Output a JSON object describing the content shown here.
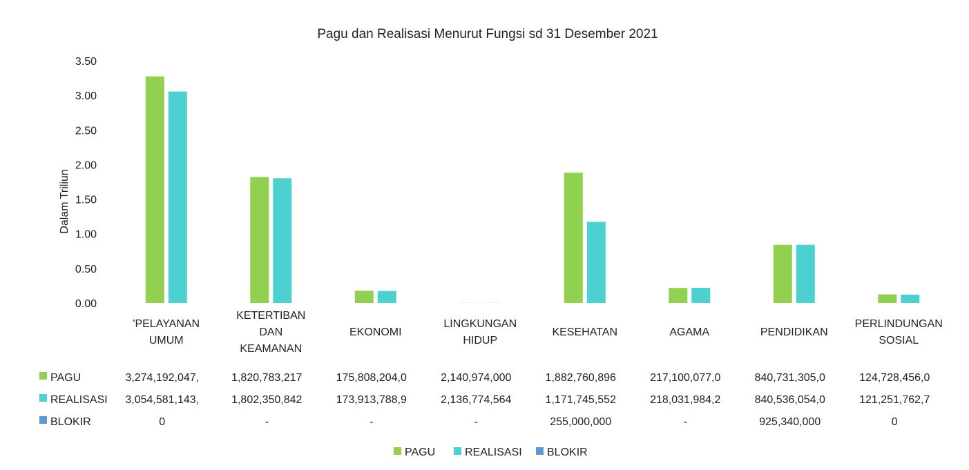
{
  "chart_data": {
    "type": "bar",
    "title": "Pagu dan Realisasi Menurut Fungsi sd 31 Desember 2021",
    "ylabel": "Dalam Triliun",
    "xlabel": "",
    "ylim": [
      0,
      3.5
    ],
    "yticks": [
      "0.00",
      "0.50",
      "1.00",
      "1.50",
      "2.00",
      "2.50",
      "3.00",
      "3.50"
    ],
    "grid": false,
    "legend_position": "bottom",
    "categories": [
      [
        "'PELAYANAN",
        "UMUM"
      ],
      [
        "KETERTIBAN",
        "DAN",
        "KEAMANAN"
      ],
      [
        "EKONOMI"
      ],
      [
        "LINGKUNGAN",
        "HIDUP"
      ],
      [
        "KESEHATAN"
      ],
      [
        "AGAMA"
      ],
      [
        "PENDIDIKAN"
      ],
      [
        "PERLINDUNGAN",
        "SOSIAL"
      ]
    ],
    "series": [
      {
        "name": "PAGU",
        "color": "#92d050",
        "values": [
          3.274,
          1.821,
          0.176,
          0.002,
          1.883,
          0.217,
          0.841,
          0.125
        ],
        "table": [
          "3,274,192,047,",
          "1,820,783,217",
          "175,808,204,0",
          "2,140,974,000",
          "1,882,760,896",
          "217,100,077,0",
          "840,731,305,0",
          "124,728,456,0"
        ]
      },
      {
        "name": "REALISASI",
        "color": "#4dd0d0",
        "values": [
          3.055,
          1.802,
          0.174,
          0.002,
          1.172,
          0.218,
          0.841,
          0.121
        ],
        "table": [
          "3,054,581,143,",
          "1,802,350,842",
          "173,913,788,9",
          "2,136,774,564",
          "1,171,745,552",
          "218,031,984,2",
          "840,536,054,0",
          "121,251,762,7"
        ]
      },
      {
        "name": "BLOKIR",
        "color": "#5b9bd5",
        "values": [
          0,
          0,
          0,
          0,
          0,
          0,
          0,
          0
        ],
        "table": [
          "0",
          "-",
          "-",
          "-",
          "255,000,000",
          "-",
          "925,340,000",
          "0"
        ]
      }
    ]
  }
}
